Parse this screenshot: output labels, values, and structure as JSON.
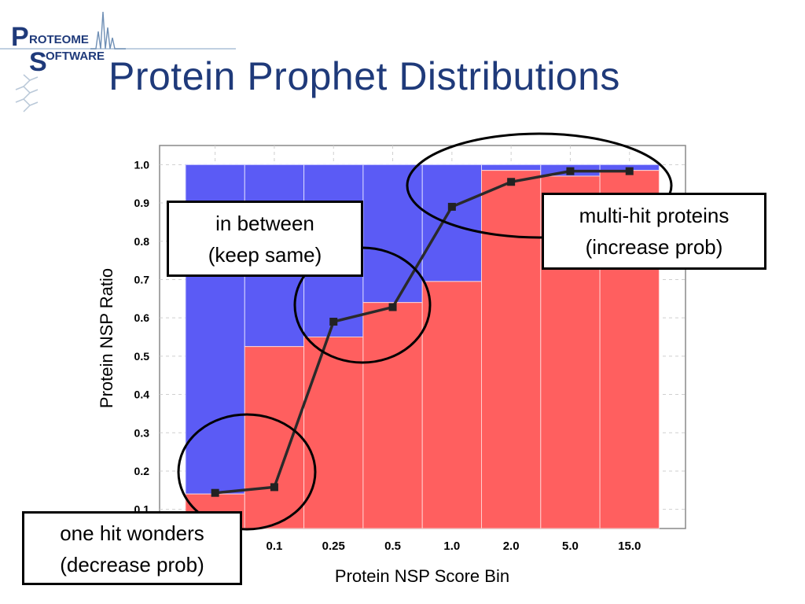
{
  "slide": {
    "title": "Protein Prophet Distributions",
    "logo": {
      "line1": "ROTEOME",
      "line2": "OFTWARE",
      "initial1": "P",
      "initial2": "S"
    }
  },
  "callouts": {
    "in_between": {
      "line1": "in between",
      "line2": "(keep same)"
    },
    "multi_hit": {
      "line1": "multi-hit proteins",
      "line2": "(increase prob)"
    },
    "one_hit": {
      "line1": "one hit wonders",
      "line2": "(decrease prob)"
    }
  },
  "colors": {
    "red": "#ff5f5f",
    "blue": "#5b5bf5",
    "title": "#1f3a7a",
    "line": "#2a2a2a"
  },
  "chart_data": {
    "type": "bar",
    "stacked": true,
    "xlabel": "Protein NSP Score Bin",
    "ylabel": "Protein NSP Ratio",
    "ylim": [
      0.05,
      1.05
    ],
    "yticks": [
      0.1,
      0.2,
      0.3,
      0.4,
      0.5,
      0.6,
      0.7,
      0.8,
      0.9,
      1.0
    ],
    "ytick_labels": [
      "0.1",
      "0.2",
      "0.3",
      "0.4",
      "0.5",
      "0.6",
      "0.7",
      "0.8",
      "0.9",
      "1.0"
    ],
    "categories": [
      "",
      "0.1",
      "0.25",
      "0.5",
      "1.0",
      "2.0",
      "5.0",
      "15.0"
    ],
    "series": [
      {
        "values": [
          0.14,
          0.525,
          0.55,
          0.64,
          0.695,
          0.985,
          0.97,
          0.985
        ]
      },
      {
        "values": [
          0.86,
          0.475,
          0.45,
          0.36,
          0.305,
          0.015,
          0.03,
          0.015
        ]
      }
    ],
    "line_values": [
      0.143,
      0.158,
      0.59,
      0.628,
      0.89,
      0.955,
      0.983,
      0.983
    ],
    "grid": true
  }
}
